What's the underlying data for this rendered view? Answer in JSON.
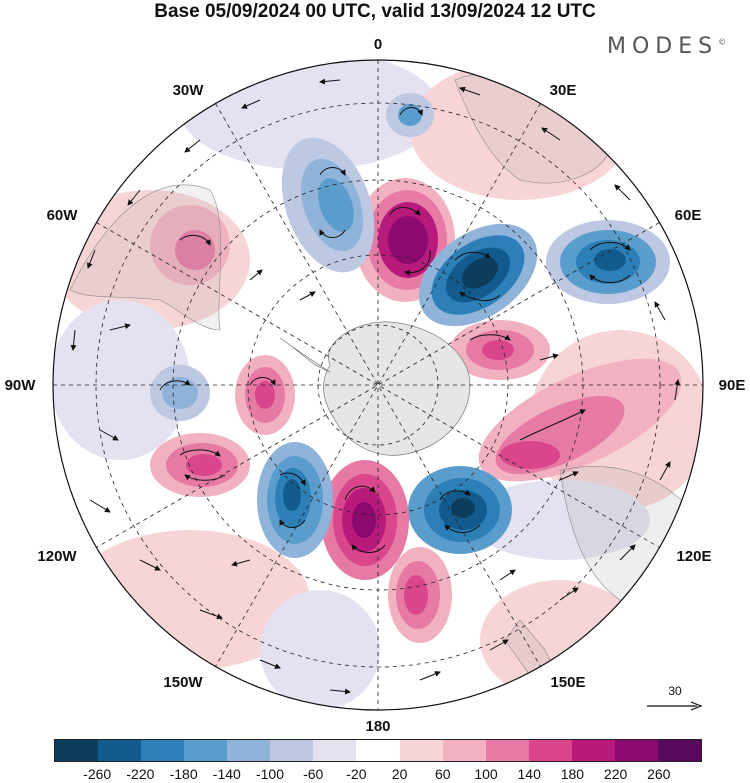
{
  "title": "Base 05/09/2024 00 UTC, valid 13/09/2024 12 UTC",
  "logo": {
    "text": "MODES",
    "mark": "©"
  },
  "longitude_labels": [
    "0",
    "30E",
    "60E",
    "90E",
    "120E",
    "150E",
    "180",
    "150W",
    "120W",
    "90W",
    "60W",
    "30W"
  ],
  "wind_reference": {
    "value": "30"
  },
  "colorbar": {
    "ticks": [
      "-260",
      "-220",
      "-180",
      "-140",
      "-100",
      "-60",
      "-20",
      "20",
      "60",
      "100",
      "140",
      "180",
      "220",
      "260"
    ],
    "colors": [
      "#0d3d5c",
      "#125b8f",
      "#2d7fb8",
      "#5a9ccc",
      "#8fb3d9",
      "#bdc8e3",
      "#e4e2f0",
      "#ffffff",
      "#f7d5d7",
      "#f2b1c0",
      "#e67aa5",
      "#d9468c",
      "#b81a7c",
      "#8c0a6e",
      "#5a0a5e"
    ]
  },
  "map": {
    "projection": "south polar stereographic",
    "field": "geopotential height anomaly",
    "features": [
      {
        "name": "anomaly-positive-south-atlantic",
        "sign": "positive",
        "strength": 260
      },
      {
        "name": "anomaly-negative-southern-indian",
        "sign": "negative",
        "strength": -260
      },
      {
        "name": "anomaly-negative-east-indian",
        "sign": "negative",
        "strength": -220
      },
      {
        "name": "anomaly-positive-kerguelen",
        "sign": "positive",
        "strength": 180
      },
      {
        "name": "anomaly-positive-south-australia",
        "sign": "positive",
        "strength": 180
      },
      {
        "name": "anomaly-negative-southern-ocean-south-of-australia",
        "sign": "negative",
        "strength": -260
      },
      {
        "name": "anomaly-positive-ross-sea",
        "sign": "positive",
        "strength": 260
      },
      {
        "name": "anomaly-positive-south-of-new-zealand",
        "sign": "positive",
        "strength": 220
      },
      {
        "name": "anomaly-negative-amundsen-sea",
        "sign": "negative",
        "strength": -220
      },
      {
        "name": "anomaly-positive-south-pacific",
        "sign": "positive",
        "strength": 180
      },
      {
        "name": "anomaly-positive-drake-passage",
        "sign": "positive",
        "strength": 180
      },
      {
        "name": "anomaly-negative-southeast-pacific",
        "sign": "negative",
        "strength": -140
      },
      {
        "name": "anomaly-negative-south-atlantic-west",
        "sign": "negative",
        "strength": -180
      },
      {
        "name": "anomaly-positive-south-america",
        "sign": "positive",
        "strength": 100
      },
      {
        "name": "anomaly-negative-southwest-atlantic",
        "sign": "negative",
        "strength": -220
      }
    ]
  }
}
